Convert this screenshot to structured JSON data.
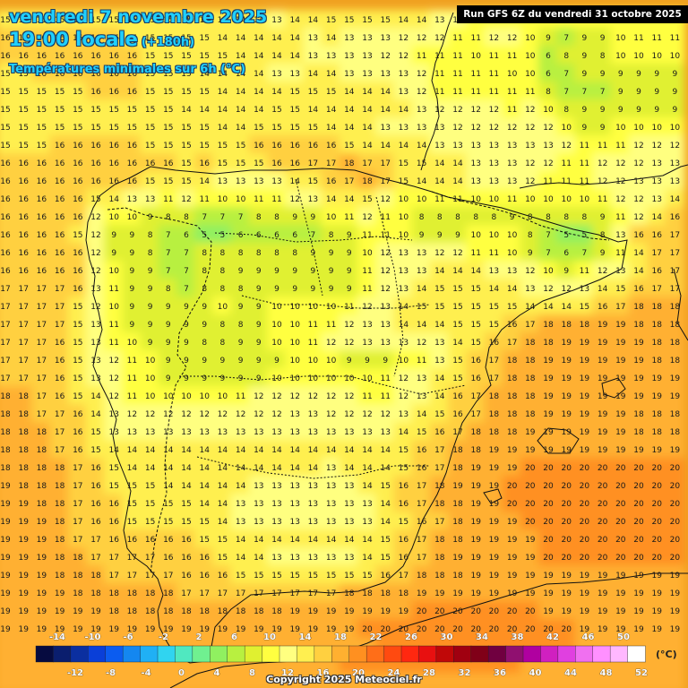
{
  "header": {
    "date": "vendredi 7 novembre 2025",
    "time": "19:00 locale",
    "lead": "(+180h)",
    "variable": "Températures minimales sur 6h (°C)"
  },
  "run_info": "Run GFS 6Z du vendredi 31 octobre 2025",
  "copyright": "Copyright 2025 Meteociel.fr",
  "legend": {
    "unit": "(°C)",
    "top_labels": [
      "-14",
      "-10",
      "-6",
      "-2",
      "2",
      "6",
      "10",
      "14",
      "18",
      "22",
      "26",
      "30",
      "34",
      "38",
      "42",
      "46",
      "50"
    ],
    "bottom_labels": [
      "-12",
      "-8",
      "-4",
      "0",
      "4",
      "8",
      "12",
      "16",
      "20",
      "24",
      "28",
      "32",
      "36",
      "40",
      "44",
      "48",
      "52"
    ],
    "colors": [
      "#060b40",
      "#0a1e6e",
      "#0b2fa0",
      "#0a3fd8",
      "#0b5cf0",
      "#1487f0",
      "#20b0f5",
      "#30d4f0",
      "#50e8c0",
      "#70f090",
      "#90f060",
      "#b8f040",
      "#e0f030",
      "#ffff40",
      "#ffff80",
      "#ffef50",
      "#ffd040",
      "#ffb030",
      "#ff9020",
      "#ff6e18",
      "#ff4a10",
      "#ff2810",
      "#e81010",
      "#c00808",
      "#a00010",
      "#800018",
      "#700040",
      "#901070",
      "#b000a0",
      "#d020c0",
      "#e040e0",
      "#f070f0",
      "#ff90ff",
      "#ffb8ff",
      "#ffffff"
    ]
  },
  "temperature_rows": [
    "15 15 15 15 15 15 15 15 15 15 15 14 14 14 14 13 14 14 15 15 15 15 14 14 13 12 11 10 10 10 10 10 10 10 10 10 10 10",
    "16 16 16 16 16 16 16 15 15 15 15 15 14 14 14 14 14 13 14 13 13 13 12 12 12 11 11 12 12 10 9 7 9 9 10 11 11 11",
    "16 16 16 16 16 16 16 16 15 15 15 15 15 14 14 14 14 13 13 13 13 12 12 11 11 11 10 11 11 10 6 8 9 8 10 10 10 10",
    "15 15 16 16 16 16 16 16 15 15 15 14 14 14 14 13 13 14 14 13 13 13 13 12 11 11 11 11 10 10 6 7 9 9 9 9 9 9",
    "15 15 15 15 15 16 16 16 15 15 15 15 14 14 14 14 15 15 15 14 14 14 13 12 11 11 11 11 11 11 8 7 7 7 9 9 9 9",
    "15 15 15 15 15 15 15 15 15 15 14 14 14 14 14 15 15 14 14 14 14 14 14 13 12 12 12 12 11 12 10 8 9 9 9 9 9 9",
    "15 15 15 15 15 15 15 15 15 15 15 15 14 14 15 15 15 15 14 14 14 13 13 13 13 12 12 12 12 12 12 10 9 9 10 10 10 10",
    "15 15 15 16 16 16 16 16 15 15 15 15 15 15 16 16 16 16 16 15 14 14 14 14 13 13 13 13 13 13 13 12 11 11 11 12 12 12",
    "16 16 16 16 16 16 16 16 16 16 15 16 15 15 15 16 16 17 17 18 17 17 15 15 14 14 13 13 13 12 12 11 11 12 12 12 13 13",
    "16 16 16 16 16 16 16 16 15 15 15 14 13 13 13 13 14 15 16 17 18 17 15 14 14 14 13 13 13 12 11 11 11 12 12 13 13 13",
    "16 16 16 16 16 15 14 13 13 11 12 11 10 10 11 11 12 13 14 14 15 12 10 10 11 11 10 10 11 10 10 10 10 11 12 12 13 14",
    "16 16 16 16 16 12 10 10 9 8 8 7 7 7 8 8 9 9 10 11 12 11 10 8 8 8 8 8 9 8 8 8 8 9 11 12 14 16",
    "16 16 16 16 15 12 9 9 8 7 6 5 5 6 6 6 6 7 8 9 11 11 10 9 9 9 10 10 10 8 7 5 5 8 13 16 16 17",
    "16 16 16 16 16 12 9 9 8 7 7 8 8 8 8 8 8 9 9 9 10 12 13 13 12 12 11 11 10 9 7 6 7 9 11 14 17 17",
    "16 16 16 16 16 12 10 9 9 7 7 8 8 9 9 9 9 9 9 9 11 12 13 13 14 14 14 13 13 12 10 9 11 12 13 14 16 17",
    "17 17 17 17 16 13 11 9 9 8 7 8 8 8 9 9 9 9 9 9 11 12 13 14 15 15 15 14 14 13 12 12 13 14 15 16 17 17",
    "17 17 17 17 15 12 10 9 9 9 9 9 10 9 9 10 10 10 10 11 12 13 14 15 15 15 15 15 15 14 14 14 15 16 17 18 18 18",
    "17 17 17 17 15 13 11 9 9 9 9 9 8 8 9 10 10 11 11 12 13 13 14 14 14 15 15 15 16 17 18 18 18 19 19 18 18 18",
    "17 17 17 16 15 13 11 10 9 9 9 8 8 9 9 10 10 11 12 12 13 13 13 12 13 14 15 16 17 18 18 19 19 19 19 19 18 18",
    "17 17 17 16 15 13 12 11 10 9 9 9 9 9 9 9 10 10 10 9 9 9 10 11 13 15 16 17 18 18 19 19 19 19 19 19 18 18",
    "17 17 17 16 15 13 12 11 10 9 9 9 9 9 9 10 10 10 10 10 10 11 12 13 14 15 16 17 18 18 19 19 19 19 19 19 19 19",
    "18 18 17 16 15 14 12 11 10 10 10 10 10 11 12 12 12 12 12 12 11 11 12 13 14 16 17 18 18 18 19 19 19 19 19 19 19 19",
    "18 18 17 17 16 14 13 12 12 12 12 12 12 12 12 12 13 13 12 12 12 12 13 14 15 16 17 18 18 18 19 19 19 19 19 18 18 18",
    "18 18 18 17 16 15 13 13 13 13 13 13 13 13 13 13 13 13 13 13 13 13 14 15 16 17 18 18 18 19 19 19 19 19 19 18 18 18",
    "18 18 18 17 16 15 14 14 14 14 14 14 14 14 14 14 14 14 14 14 14 14 15 16 17 18 18 19 19 19 19 19 19 19 19 19 19 19",
    "18 18 18 18 17 16 15 14 14 14 14 14 14 14 14 14 14 14 13 14 14 14 15 16 17 18 19 19 19 20 20 20 20 20 20 20 20 20",
    "19 18 18 18 17 16 15 15 15 14 14 14 14 14 13 13 13 13 13 13 14 15 16 17 18 19 19 19 20 20 20 20 20 20 20 20 20 20",
    "19 19 18 18 17 16 16 15 15 15 15 14 14 13 13 13 13 13 13 13 13 14 16 17 18 18 19 19 20 20 20 20 20 20 20 20 20 20",
    "19 19 19 18 17 16 16 15 15 15 15 15 14 13 13 13 13 13 13 13 13 14 15 16 17 18 19 19 19 20 20 20 20 20 20 20 20 20",
    "19 19 19 18 17 17 16 16 16 16 16 15 15 14 14 14 14 14 14 14 14 15 16 17 18 18 19 19 19 19 20 20 20 20 20 20 20 20",
    "19 19 19 18 18 17 17 17 17 16 16 16 15 14 14 13 13 13 13 13 14 15 16 17 18 19 19 19 19 19 20 20 20 20 20 20 20 20",
    "19 19 19 18 18 18 17 17 17 17 16 16 16 15 15 15 15 15 15 15 15 16 17 18 18 18 19 19 19 19 19 19 19 19 19 19 19 19",
    "19 19 19 19 18 18 18 18 18 18 17 17 17 17 17 17 17 17 17 18 18 18 18 19 19 19 19 19 19 19 19 19 19 19 19 19 19 19",
    "19 19 19 19 19 19 18 18 18 18 18 18 18 18 18 18 19 19 19 19 19 19 19 20 20 20 20 20 20 20 19 19 19 19 19 19 19 19",
    "19 19 19 19 19 19 19 19 19 19 19 19 19 19 19 19 19 19 19 19 20 20 20 20 20 20 20 20 20 20 20 20 19 19 19 19 19 19",
    "19 19 19 19 19 19 19 19 19 19 19 19 19 19 19 19 19 19 19 19 19 20 20 20 20 20 21 20 20 20 20 20 19 19 19 19 19 18",
    "19 19 19 19 19 19 19 19 18 18 19 19 19 19 19 19 19 19 19 20 20 20 20 20 20 20 20 20 20 19 19 19 19 19 19 18 18 18",
    "19 19 19 19 19 19 19 19 19 19 19 19 19 19 19 19 19 19 19 19 19 19 19 19 19 19 19 19 19 19 19 19 19 19 19 19 19 18"
  ]
}
